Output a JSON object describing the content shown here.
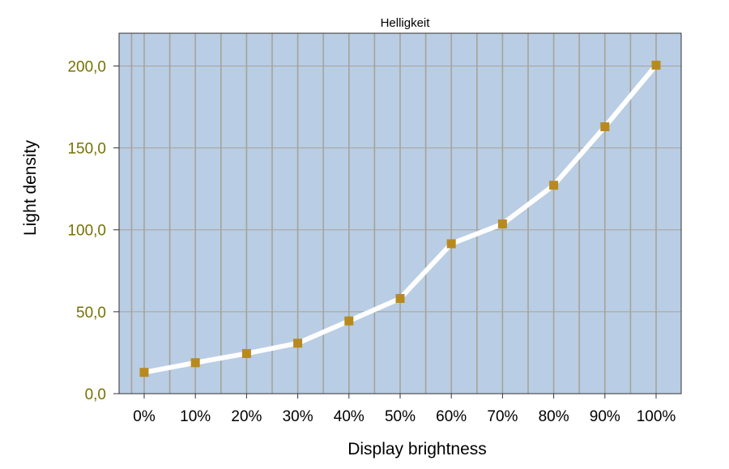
{
  "chart_data": {
    "type": "line",
    "title": "Helligkeit",
    "xlabel": "Display brightness",
    "ylabel": "Light density",
    "categories": [
      "0%",
      "10%",
      "20%",
      "30%",
      "40%",
      "50%",
      "60%",
      "70%",
      "80%",
      "90%",
      "100%"
    ],
    "series": [
      {
        "values": [
          13.0,
          18.9,
          24.5,
          30.8,
          44.4,
          58.1,
          91.5,
          103.6,
          127.2,
          162.9,
          200.5
        ]
      }
    ],
    "ylim": [
      0,
      220
    ],
    "y_ticks": [
      0,
      50,
      100,
      150,
      200
    ],
    "y_tick_labels": [
      "0,0",
      "50,0",
      "100,0",
      "150,0",
      "200,0"
    ],
    "grid": "on",
    "legend": "none",
    "colors": {
      "plot_background": "#b9cde4",
      "grid": "#a6a39a",
      "line": "#ffffff",
      "marker": "#b88a1e",
      "y_tick_text": "#777100",
      "axis": "#333333"
    }
  }
}
